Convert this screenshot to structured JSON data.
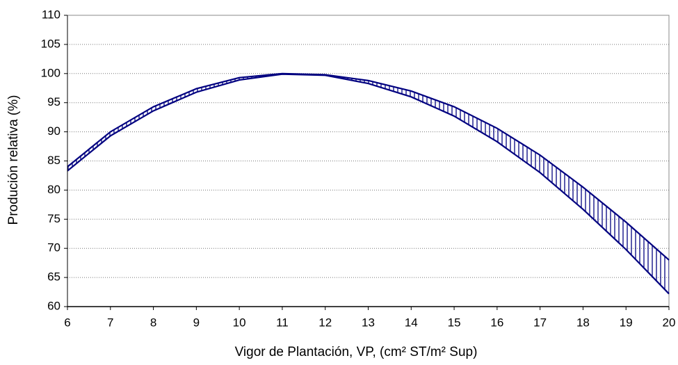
{
  "chart_data": {
    "type": "line",
    "x_label": "Vigor de Plantación, VP, (cm² ST/m² Sup)",
    "y_label": "Produción relativa (%)",
    "x": [
      6,
      7,
      8,
      9,
      10,
      11,
      12,
      13,
      14,
      15,
      16,
      17,
      18,
      19,
      20
    ],
    "series": [
      {
        "color": "#000080",
        "values": [
          84,
          90,
          94.3,
          97.4,
          99.3,
          100,
          99.8,
          98.8,
          97,
          94.3,
          90.6,
          86,
          80.5,
          74.5,
          68
        ]
      },
      {
        "color": "#000080",
        "values": [
          83.3,
          89.3,
          93.6,
          96.8,
          98.9,
          99.9,
          99.7,
          98.3,
          96,
          92.7,
          88.3,
          83,
          76.7,
          69.8,
          62.2
        ]
      }
    ],
    "fill_between": "vertical-hatch",
    "xlim": [
      6,
      20
    ],
    "xticks": [
      6,
      7,
      8,
      9,
      10,
      11,
      12,
      13,
      14,
      15,
      16,
      17,
      18,
      19,
      20
    ],
    "ylim": [
      60,
      110
    ],
    "yticks": [
      60,
      65,
      70,
      75,
      80,
      85,
      90,
      95,
      100,
      105,
      110
    ],
    "grid": true
  }
}
